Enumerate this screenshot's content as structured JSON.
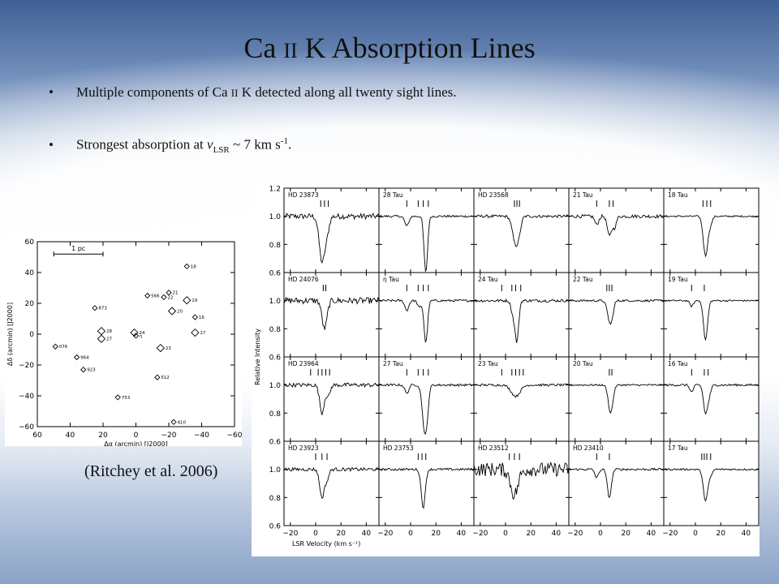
{
  "slide": {
    "title_main": "Ca ",
    "title_ion": "II",
    "title_rest": " K Absorption  Lines",
    "bullet_symbol": "•",
    "bullet1_a": "Multiple components of Ca ",
    "bullet1_ion": "II",
    "bullet1_b": " K detected along all twenty sight lines.",
    "bullet2_a": "Strongest absorption at ",
    "bullet2_v": "v",
    "bullet2_sub": "LSR",
    "bullet2_b": " ~ 7 km s",
    "bullet2_sup": "-1",
    "bullet2_c": ".",
    "citation": "(Ritchey et al. 2006)"
  },
  "chart_data": [
    {
      "type": "scatter",
      "xlabel": "Δα (arcmin) [J2000]",
      "ylabel": "Δδ (arcmin) [J2000]",
      "xlim": [
        60,
        -60
      ],
      "ylim": [
        -60,
        60
      ],
      "xticks": [
        60,
        40,
        20,
        0,
        -20,
        -40,
        -60
      ],
      "yticks": [
        60,
        40,
        20,
        0,
        -20,
        -40,
        -60
      ],
      "scale_bar_label": "1 pc",
      "points": [
        {
          "label": "18",
          "x": -31,
          "y": 44,
          "size": "small"
        },
        {
          "label": "21",
          "x": -20,
          "y": 27,
          "size": "small"
        },
        {
          "label": "22",
          "x": -17,
          "y": 24,
          "size": "small"
        },
        {
          "label": "566",
          "x": -7,
          "y": 25,
          "size": "small"
        },
        {
          "label": "19",
          "x": -31,
          "y": 22,
          "size": "large"
        },
        {
          "label": "873",
          "x": 25,
          "y": 17,
          "size": "small"
        },
        {
          "label": "20",
          "x": -22,
          "y": 15,
          "size": "large"
        },
        {
          "label": "16",
          "x": -36,
          "y": 11,
          "size": "small"
        },
        {
          "label": "28",
          "x": 21,
          "y": 2,
          "size": "large"
        },
        {
          "label": "24",
          "x": 1,
          "y": 1,
          "size": "large"
        },
        {
          "label": "17",
          "x": -36,
          "y": 1,
          "size": "large"
        },
        {
          "label": "27",
          "x": 21,
          "y": -3,
          "size": "large"
        },
        {
          "label": "η",
          "x": 0,
          "y": -1,
          "size": "small"
        },
        {
          "label": "076",
          "x": 49,
          "y": -8,
          "size": "small"
        },
        {
          "label": "23",
          "x": -15,
          "y": -9,
          "size": "large"
        },
        {
          "label": "964",
          "x": 36,
          "y": -15,
          "size": "small"
        },
        {
          "label": "923",
          "x": 32,
          "y": -23,
          "size": "small"
        },
        {
          "label": "512",
          "x": -13,
          "y": -28,
          "size": "small"
        },
        {
          "label": "753",
          "x": 11,
          "y": -41,
          "size": "small"
        },
        {
          "label": "410",
          "x": -23,
          "y": -57,
          "size": "small"
        }
      ]
    },
    {
      "type": "line",
      "xlabel": "LSR Velocity (km s⁻¹)",
      "ylabel": "Relative Intensity",
      "xlim": [
        -25,
        50
      ],
      "ylim": [
        0.6,
        1.2
      ],
      "xticks": [
        -20,
        0,
        20,
        40
      ],
      "yticks": [
        0.6,
        0.8,
        1.0,
        1.2
      ],
      "panels": [
        {
          "name": "HD 23873",
          "noise": 0.02,
          "marks": [
            4,
            7,
            10
          ],
          "lines": [
            {
              "v": 5,
              "d": 0.32,
              "w": 2.2
            },
            {
              "v": 9,
              "d": 0.1,
              "w": 1.8
            }
          ]
        },
        {
          "name": "28 Tau",
          "noise": 0.008,
          "marks": [
            -3,
            6,
            10,
            14
          ],
          "lines": [
            {
              "v": -3,
              "d": 0.07,
              "w": 1.6
            },
            {
              "v": 12,
              "d": 0.4,
              "w": 1.4
            }
          ]
        },
        {
          "name": "HD 23568",
          "noise": 0.01,
          "marks": [
            7,
            9,
            11
          ],
          "lines": [
            {
              "v": 8,
              "d": 0.2,
              "w": 2.4
            },
            {
              "v": 11,
              "d": 0.05,
              "w": 1.5
            }
          ]
        },
        {
          "name": "21 Tau",
          "noise": 0.012,
          "marks": [
            -3,
            7,
            10
          ],
          "lines": [
            {
              "v": -3,
              "d": 0.06,
              "w": 1.5
            },
            {
              "v": 7,
              "d": 0.14,
              "w": 1.6
            },
            {
              "v": 11,
              "d": 0.08,
              "w": 1.5
            }
          ]
        },
        {
          "name": "18 Tau",
          "noise": 0.006,
          "marks": [
            6,
            9,
            12
          ],
          "lines": [
            {
              "v": 8,
              "d": 0.28,
              "w": 1.8
            },
            {
              "v": 12,
              "d": 0.05,
              "w": 1.4
            }
          ]
        },
        {
          "name": "HD 24076",
          "noise": 0.022,
          "marks": [
            6,
            8
          ],
          "lines": [
            {
              "v": 7,
              "d": 0.2,
              "w": 2.0
            }
          ]
        },
        {
          "name": "η Tau",
          "noise": 0.008,
          "marks": [
            -3,
            6,
            10,
            14
          ],
          "lines": [
            {
              "v": -3,
              "d": 0.07,
              "w": 1.5
            },
            {
              "v": 7,
              "d": 0.05,
              "w": 1.4
            },
            {
              "v": 12,
              "d": 0.3,
              "w": 1.4
            }
          ]
        },
        {
          "name": "24 Tau",
          "noise": 0.01,
          "marks": [
            -3,
            5,
            8,
            12
          ],
          "lines": [
            {
              "v": 6,
              "d": 0.1,
              "w": 1.5
            },
            {
              "v": 9,
              "d": 0.28,
              "w": 1.4
            }
          ]
        },
        {
          "name": "22 Tau",
          "noise": 0.008,
          "marks": [
            5,
            7,
            9
          ],
          "lines": [
            {
              "v": 7,
              "d": 0.12,
              "w": 1.8
            },
            {
              "v": 9,
              "d": 0.08,
              "w": 1.5
            }
          ]
        },
        {
          "name": "19 Tau",
          "noise": 0.006,
          "marks": [
            -3,
            7
          ],
          "lines": [
            {
              "v": -3,
              "d": 0.04,
              "w": 1.4
            },
            {
              "v": 8,
              "d": 0.28,
              "w": 1.6
            }
          ]
        },
        {
          "name": "HD 23964",
          "noise": 0.014,
          "marks": [
            -4,
            2,
            5,
            8,
            11
          ],
          "lines": [
            {
              "v": 5,
              "d": 0.2,
              "w": 1.8
            },
            {
              "v": 10,
              "d": 0.08,
              "w": 1.5
            }
          ]
        },
        {
          "name": "27 Tau",
          "noise": 0.008,
          "marks": [
            -3,
            6,
            10,
            14
          ],
          "lines": [
            {
              "v": -3,
              "d": 0.06,
              "w": 1.5
            },
            {
              "v": 11,
              "d": 0.3,
              "w": 1.8
            },
            {
              "v": 13,
              "d": 0.12,
              "w": 1.4
            }
          ]
        },
        {
          "name": "23 Tau",
          "noise": 0.008,
          "marks": [
            -3,
            5,
            8,
            11,
            14
          ],
          "lines": [
            {
              "v": 8,
              "d": 0.08,
              "w": 3.5
            }
          ]
        },
        {
          "name": "20 Tau",
          "noise": 0.006,
          "marks": [
            7,
            9
          ],
          "lines": [
            {
              "v": 8,
              "d": 0.2,
              "w": 1.8
            }
          ]
        },
        {
          "name": "16 Tau",
          "noise": 0.008,
          "marks": [
            -3,
            7,
            10
          ],
          "lines": [
            {
              "v": -3,
              "d": 0.05,
              "w": 1.4
            },
            {
              "v": 8,
              "d": 0.2,
              "w": 1.6
            },
            {
              "v": 11,
              "d": 0.06,
              "w": 1.4
            }
          ]
        },
        {
          "name": "HD 23923",
          "noise": 0.012,
          "marks": [
            0,
            5,
            9
          ],
          "lines": [
            {
              "v": 5,
              "d": 0.2,
              "w": 1.8
            },
            {
              "v": 9,
              "d": 0.07,
              "w": 1.5
            }
          ]
        },
        {
          "name": "HD 23753",
          "noise": 0.008,
          "marks": [
            6,
            9,
            12
          ],
          "lines": [
            {
              "v": 10,
              "d": 0.27,
              "w": 1.6
            }
          ]
        },
        {
          "name": "HD 23512",
          "noise": 0.05,
          "marks": [
            3,
            7,
            11
          ],
          "lines": [
            {
              "v": 7,
              "d": 0.18,
              "w": 3.0
            }
          ]
        },
        {
          "name": "HD 23410",
          "noise": 0.008,
          "marks": [
            -3,
            7
          ],
          "lines": [
            {
              "v": -3,
              "d": 0.06,
              "w": 1.4
            },
            {
              "v": 7,
              "d": 0.2,
              "w": 1.6
            }
          ]
        },
        {
          "name": "17 Tau",
          "noise": 0.006,
          "marks": [
            5,
            7,
            9,
            12
          ],
          "lines": [
            {
              "v": 8,
              "d": 0.22,
              "w": 1.8
            },
            {
              "v": 12,
              "d": 0.04,
              "w": 1.4
            }
          ]
        }
      ]
    }
  ]
}
